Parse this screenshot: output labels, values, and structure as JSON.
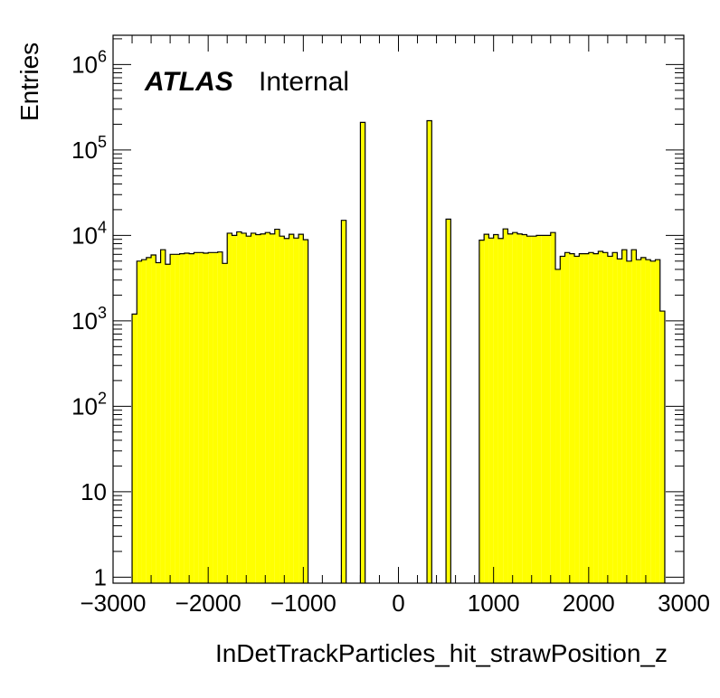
{
  "chart_data": {
    "type": "bar",
    "histogram": true,
    "xlabel": "InDetTrackParticles_hit_strawPosition_z",
    "ylabel": "Entries",
    "label_main": "ATLAS",
    "label_sub": "Internal",
    "xlim": [
      -3000,
      3000
    ],
    "ylim": [
      0.85,
      2200000
    ],
    "yscale": "log",
    "x_ticks": [
      "−3000",
      "−2000",
      "−1000",
      "0",
      "1000",
      "2000",
      "3000"
    ],
    "y_ticks": [
      {
        "value": 1,
        "label": "1"
      },
      {
        "value": 10,
        "label": "10"
      },
      {
        "value": 100,
        "label": "10",
        "sup": "2"
      },
      {
        "value": 1000,
        "label": "10",
        "sup": "3"
      },
      {
        "value": 10000,
        "label": "10",
        "sup": "4"
      },
      {
        "value": 100000,
        "label": "10",
        "sup": "5"
      },
      {
        "value": 1000000,
        "label": "10",
        "sup": "6"
      }
    ],
    "fill_color": "#ffff00",
    "line_color": "#000000",
    "bin_width": 50,
    "bins": [
      {
        "x0": -2800,
        "v": 1200
      },
      {
        "x0": -2750,
        "v": 5000
      },
      {
        "x0": -2700,
        "v": 5200
      },
      {
        "x0": -2650,
        "v": 5500
      },
      {
        "x0": -2600,
        "v": 5900
      },
      {
        "x0": -2550,
        "v": 4800
      },
      {
        "x0": -2500,
        "v": 6800
      },
      {
        "x0": -2450,
        "v": 4600
      },
      {
        "x0": -2400,
        "v": 6000
      },
      {
        "x0": -2350,
        "v": 6000
      },
      {
        "x0": -2300,
        "v": 6100
      },
      {
        "x0": -2250,
        "v": 6200
      },
      {
        "x0": -2200,
        "v": 6100
      },
      {
        "x0": -2150,
        "v": 6300
      },
      {
        "x0": -2100,
        "v": 6300
      },
      {
        "x0": -2050,
        "v": 6200
      },
      {
        "x0": -2000,
        "v": 6300
      },
      {
        "x0": -1950,
        "v": 6300
      },
      {
        "x0": -1900,
        "v": 6400
      },
      {
        "x0": -1850,
        "v": 4700
      },
      {
        "x0": -1800,
        "v": 10600
      },
      {
        "x0": -1750,
        "v": 10000
      },
      {
        "x0": -1700,
        "v": 11000
      },
      {
        "x0": -1650,
        "v": 10600
      },
      {
        "x0": -1600,
        "v": 9800
      },
      {
        "x0": -1550,
        "v": 10600
      },
      {
        "x0": -1500,
        "v": 10200
      },
      {
        "x0": -1450,
        "v": 10400
      },
      {
        "x0": -1400,
        "v": 10800
      },
      {
        "x0": -1350,
        "v": 10400
      },
      {
        "x0": -1300,
        "v": 11800
      },
      {
        "x0": -1250,
        "v": 9800
      },
      {
        "x0": -1200,
        "v": 9200
      },
      {
        "x0": -1150,
        "v": 10300
      },
      {
        "x0": -1100,
        "v": 9300
      },
      {
        "x0": -1050,
        "v": 10300
      },
      {
        "x0": -1000,
        "v": 8900
      },
      {
        "x0": -600,
        "v": 15000
      },
      {
        "x0": -400,
        "v": 210000
      },
      {
        "x0": 300,
        "v": 220000
      },
      {
        "x0": 500,
        "v": 15500
      },
      {
        "x0": 850,
        "v": 8800
      },
      {
        "x0": 900,
        "v": 10300
      },
      {
        "x0": 950,
        "v": 9300
      },
      {
        "x0": 1000,
        "v": 10200
      },
      {
        "x0": 1050,
        "v": 9200
      },
      {
        "x0": 1100,
        "v": 11900
      },
      {
        "x0": 1150,
        "v": 10400
      },
      {
        "x0": 1200,
        "v": 10800
      },
      {
        "x0": 1250,
        "v": 10400
      },
      {
        "x0": 1300,
        "v": 10200
      },
      {
        "x0": 1350,
        "v": 9800
      },
      {
        "x0": 1400,
        "v": 9800
      },
      {
        "x0": 1450,
        "v": 10000
      },
      {
        "x0": 1500,
        "v": 10000
      },
      {
        "x0": 1550,
        "v": 10000
      },
      {
        "x0": 1600,
        "v": 10800
      },
      {
        "x0": 1650,
        "v": 4000
      },
      {
        "x0": 1700,
        "v": 5700
      },
      {
        "x0": 1750,
        "v": 6300
      },
      {
        "x0": 1800,
        "v": 6100
      },
      {
        "x0": 1850,
        "v": 5700
      },
      {
        "x0": 1900,
        "v": 6100
      },
      {
        "x0": 1950,
        "v": 6100
      },
      {
        "x0": 2000,
        "v": 6300
      },
      {
        "x0": 2050,
        "v": 6100
      },
      {
        "x0": 2100,
        "v": 6500
      },
      {
        "x0": 2150,
        "v": 6300
      },
      {
        "x0": 2200,
        "v": 5700
      },
      {
        "x0": 2250,
        "v": 6300
      },
      {
        "x0": 2300,
        "v": 5300
      },
      {
        "x0": 2350,
        "v": 6800
      },
      {
        "x0": 2400,
        "v": 5000
      },
      {
        "x0": 2450,
        "v": 6800
      },
      {
        "x0": 2500,
        "v": 5200
      },
      {
        "x0": 2550,
        "v": 5500
      },
      {
        "x0": 2600,
        "v": 5200
      },
      {
        "x0": 2650,
        "v": 5000
      },
      {
        "x0": 2700,
        "v": 5200
      },
      {
        "x0": 2750,
        "v": 1300
      }
    ]
  }
}
